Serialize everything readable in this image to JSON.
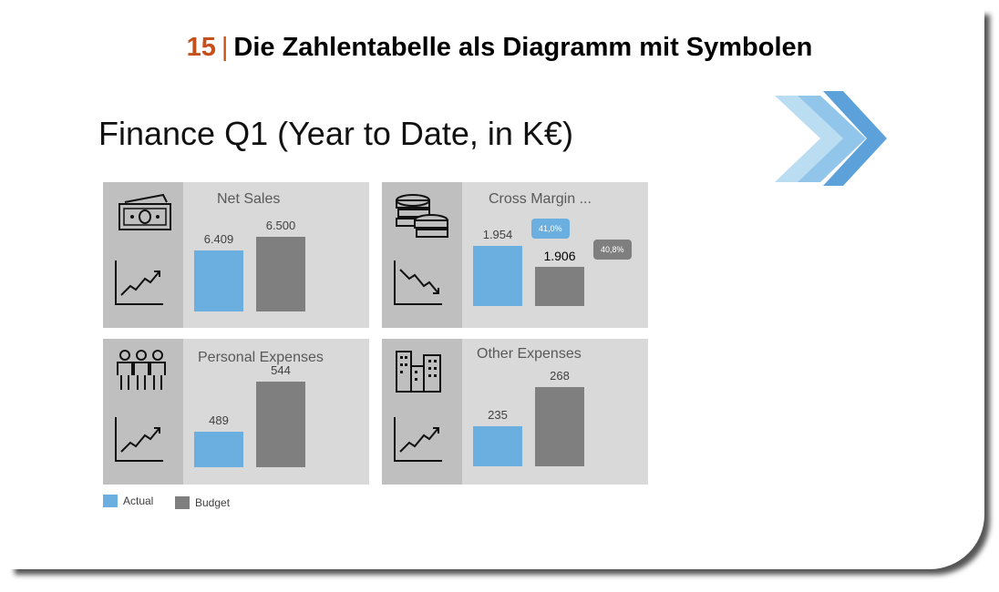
{
  "header": {
    "number": "15",
    "separator": "|",
    "title": "Die Zahlentabelle als Diagramm mit Symbolen"
  },
  "subtitle": "Finance Q1 (Year to Date, in K€)",
  "colors": {
    "actual": "#6aafe0",
    "budget": "#7f7f7f",
    "accent": "#c5501c"
  },
  "chart_data": [
    {
      "type": "bar",
      "title": "Net Sales",
      "categories": [
        "Actual",
        "Budget"
      ],
      "values": [
        6409,
        6500
      ],
      "labels": [
        "6.409",
        "6.500"
      ],
      "ylim": [
        6003,
        6609
      ],
      "icon": "money-icon",
      "trend": "trend-up-icon"
    },
    {
      "type": "bar",
      "title": "Cross Margin ...",
      "categories": [
        "Actual",
        "Budget"
      ],
      "values": [
        1954,
        1906
      ],
      "labels": [
        "1.954",
        "1.906"
      ],
      "callouts": [
        "41,0%",
        "40,8%"
      ],
      "ylim": [
        1816,
        2025
      ],
      "icon": "coins-icon",
      "trend": "trend-down-icon"
    },
    {
      "type": "bar",
      "title": "Personal Expenses",
      "categories": [
        "Actual",
        "Budget"
      ],
      "values": [
        489,
        544
      ],
      "labels": [
        "489",
        "544"
      ],
      "ylim": [
        450,
        550
      ],
      "icon": "people-icon",
      "trend": "trend-up-icon"
    },
    {
      "type": "bar",
      "title": "Other Expenses",
      "categories": [
        "Actual",
        "Budget"
      ],
      "values": [
        235,
        268
      ],
      "labels": [
        "235",
        "268"
      ],
      "ylim": [
        201,
        278
      ],
      "icon": "buildings-icon",
      "trend": "trend-up-icon"
    }
  ],
  "legend": [
    {
      "label": "Actual"
    },
    {
      "label": "Budget"
    }
  ]
}
